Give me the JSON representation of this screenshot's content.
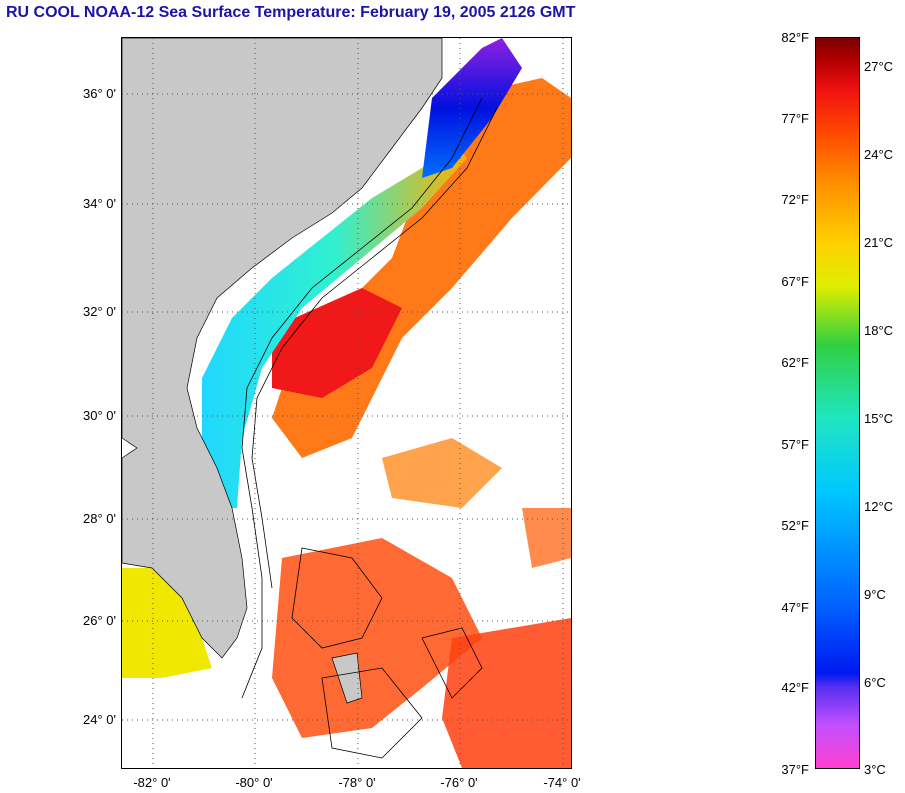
{
  "title": "RU COOL  NOAA-12  Sea Surface Temperature:  February 19, 2005 2126 GMT",
  "lat_labels": [
    "36° 0'",
    "34° 0'",
    "32° 0'",
    "30° 0'",
    "28° 0'",
    "26° 0'",
    "24° 0'"
  ],
  "lon_labels": [
    "-82° 0'",
    "-80° 0'",
    "-78° 0'",
    "-76° 0'",
    "-74° 0'"
  ],
  "colorbar": {
    "fahrenheit_labels": [
      "82°F",
      "77°F",
      "72°F",
      "67°F",
      "62°F",
      "57°F",
      "52°F",
      "47°F",
      "42°F",
      "37°F"
    ],
    "celsius_labels": [
      "27°C",
      "24°C",
      "21°C",
      "18°C",
      "15°C",
      "12°C",
      "9°C",
      "6°C",
      "3°C"
    ]
  },
  "colors": {
    "title": "#1c14a8",
    "land": "#c8c8c8",
    "cold": "#0018f0",
    "warm": "#ff4800"
  }
}
